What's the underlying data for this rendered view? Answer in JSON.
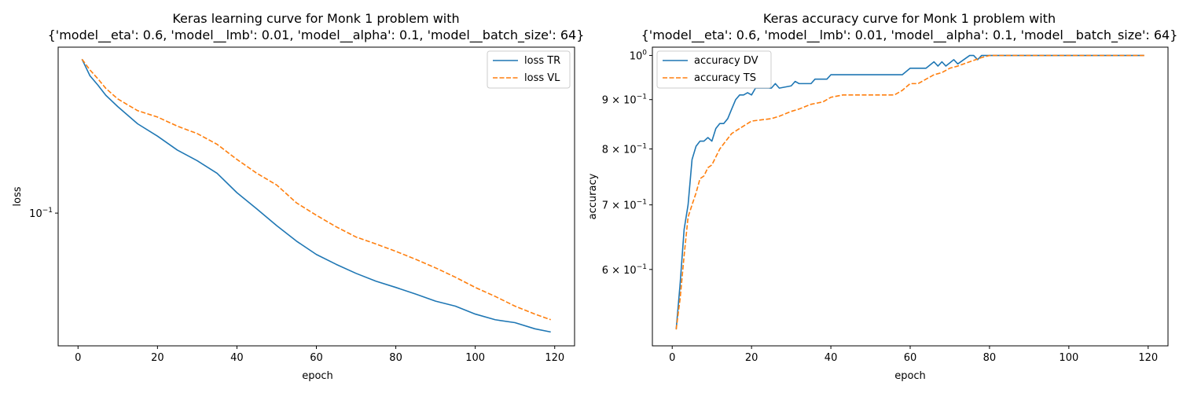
{
  "colors": {
    "series_1": "#1f77b4",
    "series_2": "#ff7f0e"
  },
  "chart_data": [
    {
      "type": "line",
      "title": "Keras learning curve for Monk 1 problem with",
      "subtitle": "{'model__eta': 0.6, 'model__lmb': 0.01, 'model__alpha': 0.1, 'model__batch_size': 64}",
      "xlabel": "epoch",
      "ylabel": "loss",
      "yscale": "log",
      "xlim": [
        -5,
        125
      ],
      "ylim": [
        0.029,
        0.47
      ],
      "grid": false,
      "legend": "upper right",
      "x_ticks": [
        0,
        20,
        40,
        60,
        80,
        100,
        120
      ],
      "y_ticks": [
        {
          "value": 0.1,
          "label": "10",
          "exp": "−1"
        }
      ],
      "series": [
        {
          "name": "loss TR",
          "style": "solid",
          "points": [
            [
              1,
              0.42
            ],
            [
              3,
              0.36
            ],
            [
              5,
              0.33
            ],
            [
              7,
              0.3
            ],
            [
              10,
              0.27
            ],
            [
              15,
              0.23
            ],
            [
              20,
              0.205
            ],
            [
              25,
              0.18
            ],
            [
              30,
              0.163
            ],
            [
              35,
              0.145
            ],
            [
              40,
              0.121
            ],
            [
              45,
              0.104
            ],
            [
              50,
              0.089
            ],
            [
              55,
              0.077
            ],
            [
              60,
              0.068
            ],
            [
              65,
              0.062
            ],
            [
              70,
              0.057
            ],
            [
              75,
              0.053
            ],
            [
              80,
              0.05
            ],
            [
              85,
              0.047
            ],
            [
              90,
              0.044
            ],
            [
              95,
              0.042
            ],
            [
              100,
              0.039
            ],
            [
              105,
              0.037
            ],
            [
              110,
              0.036
            ],
            [
              115,
              0.034
            ],
            [
              119,
              0.033
            ]
          ]
        },
        {
          "name": "loss VL",
          "style": "dashed",
          "points": [
            [
              1,
              0.42
            ],
            [
              3,
              0.38
            ],
            [
              5,
              0.35
            ],
            [
              7,
              0.32
            ],
            [
              10,
              0.29
            ],
            [
              15,
              0.26
            ],
            [
              20,
              0.245
            ],
            [
              25,
              0.225
            ],
            [
              30,
              0.21
            ],
            [
              35,
              0.19
            ],
            [
              40,
              0.165
            ],
            [
              45,
              0.145
            ],
            [
              50,
              0.13
            ],
            [
              55,
              0.11
            ],
            [
              60,
              0.098
            ],
            [
              65,
              0.088
            ],
            [
              70,
              0.08
            ],
            [
              75,
              0.075
            ],
            [
              80,
              0.07
            ],
            [
              85,
              0.065
            ],
            [
              90,
              0.06
            ],
            [
              95,
              0.055
            ],
            [
              100,
              0.05
            ],
            [
              105,
              0.046
            ],
            [
              110,
              0.042
            ],
            [
              115,
              0.039
            ],
            [
              119,
              0.037
            ]
          ]
        }
      ]
    },
    {
      "type": "line",
      "title": "Keras accuracy curve for Monk 1 problem with",
      "subtitle": "{'model__eta': 0.6, 'model__lmb': 0.01, 'model__alpha': 0.1, 'model__batch_size': 64}",
      "xlabel": "epoch",
      "ylabel": "accuracy",
      "yscale": "log",
      "xlim": [
        -5,
        125
      ],
      "ylim": [
        0.5,
        1.02
      ],
      "grid": false,
      "legend": "upper left",
      "x_ticks": [
        0,
        20,
        40,
        60,
        80,
        100,
        120
      ],
      "y_ticks": [
        {
          "value": 1.0,
          "label": "10",
          "exp": "0"
        },
        {
          "value": 0.9,
          "label": "9 × 10",
          "exp": "−1"
        },
        {
          "value": 0.8,
          "label": "8 × 10",
          "exp": "−1"
        },
        {
          "value": 0.7,
          "label": "7 × 10",
          "exp": "−1"
        },
        {
          "value": 0.6,
          "label": "6 × 10",
          "exp": "−1"
        }
      ],
      "series": [
        {
          "name": "accuracy DV",
          "style": "solid",
          "points": [
            [
              1,
              0.52
            ],
            [
              2,
              0.58
            ],
            [
              3,
              0.66
            ],
            [
              4,
              0.7
            ],
            [
              5,
              0.78
            ],
            [
              6,
              0.805
            ],
            [
              7,
              0.815
            ],
            [
              8,
              0.815
            ],
            [
              9,
              0.822
            ],
            [
              10,
              0.815
            ],
            [
              11,
              0.84
            ],
            [
              12,
              0.85
            ],
            [
              13,
              0.85
            ],
            [
              14,
              0.86
            ],
            [
              15,
              0.88
            ],
            [
              16,
              0.9
            ],
            [
              17,
              0.91
            ],
            [
              18,
              0.91
            ],
            [
              19,
              0.915
            ],
            [
              20,
              0.91
            ],
            [
              21,
              0.925
            ],
            [
              25,
              0.925
            ],
            [
              26,
              0.935
            ],
            [
              27,
              0.925
            ],
            [
              30,
              0.93
            ],
            [
              31,
              0.94
            ],
            [
              32,
              0.935
            ],
            [
              35,
              0.935
            ],
            [
              36,
              0.945
            ],
            [
              39,
              0.945
            ],
            [
              40,
              0.955
            ],
            [
              58,
              0.955
            ],
            [
              60,
              0.97
            ],
            [
              64,
              0.97
            ],
            [
              66,
              0.985
            ],
            [
              67,
              0.975
            ],
            [
              68,
              0.985
            ],
            [
              69,
              0.975
            ],
            [
              71,
              0.99
            ],
            [
              72,
              0.98
            ],
            [
              75,
              1.0
            ],
            [
              76,
              1.0
            ],
            [
              77,
              0.99
            ],
            [
              78,
              1.0
            ],
            [
              119,
              1.0
            ]
          ]
        },
        {
          "name": "accuracy TS",
          "style": "dashed",
          "points": [
            [
              1,
              0.52
            ],
            [
              2,
              0.56
            ],
            [
              3,
              0.62
            ],
            [
              4,
              0.68
            ],
            [
              5,
              0.7
            ],
            [
              6,
              0.72
            ],
            [
              7,
              0.745
            ],
            [
              8,
              0.75
            ],
            [
              9,
              0.765
            ],
            [
              10,
              0.77
            ],
            [
              11,
              0.785
            ],
            [
              12,
              0.8
            ],
            [
              13,
              0.81
            ],
            [
              14,
              0.82
            ],
            [
              15,
              0.83
            ],
            [
              17,
              0.84
            ],
            [
              19,
              0.85
            ],
            [
              20,
              0.855
            ],
            [
              25,
              0.86
            ],
            [
              27,
              0.865
            ],
            [
              30,
              0.875
            ],
            [
              32,
              0.88
            ],
            [
              35,
              0.89
            ],
            [
              38,
              0.895
            ],
            [
              40,
              0.905
            ],
            [
              43,
              0.91
            ],
            [
              56,
              0.91
            ],
            [
              58,
              0.92
            ],
            [
              60,
              0.935
            ],
            [
              62,
              0.935
            ],
            [
              64,
              0.945
            ],
            [
              66,
              0.955
            ],
            [
              68,
              0.96
            ],
            [
              70,
              0.97
            ],
            [
              72,
              0.975
            ],
            [
              75,
              0.985
            ],
            [
              78,
              0.995
            ],
            [
              80,
              1.0
            ],
            [
              119,
              1.0
            ]
          ]
        }
      ]
    }
  ]
}
